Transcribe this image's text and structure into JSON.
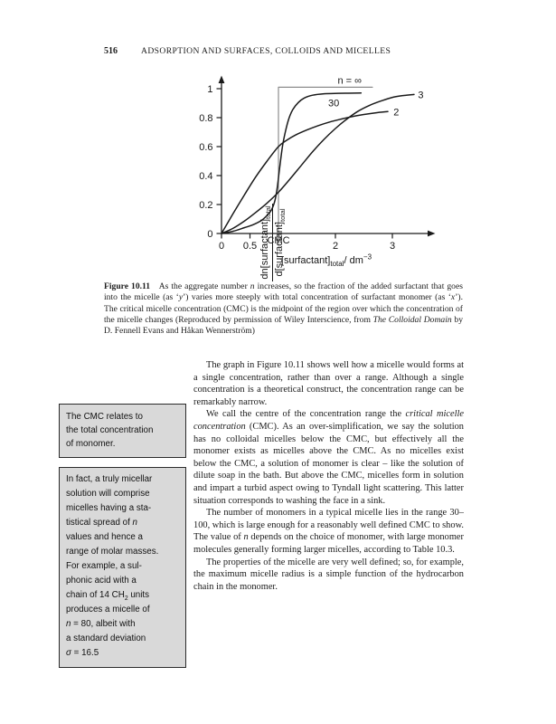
{
  "page_header": {
    "page_number": "516",
    "running_head": "ADSORPTION AND SURFACES, COLLOIDS AND MICELLES"
  },
  "chart_data": {
    "type": "line",
    "title": "",
    "xlabel": "[surfactant]total / dm−3",
    "ylabel": "dn[surfactant]total / d[surfactant]total",
    "xlabel_parts": [
      {
        "t": "[surfactant]"
      },
      {
        "t": "total",
        "sub": true
      },
      {
        "t": "/ dm"
      },
      {
        "t": "−3",
        "sup": true
      }
    ],
    "ylabel_fraction": {
      "numerator": [
        {
          "t": "dn[surfactant]"
        },
        {
          "t": "total",
          "sub": true
        }
      ],
      "denominator": [
        {
          "t": "d[surfactant]"
        },
        {
          "t": "total",
          "sub": true
        }
      ]
    },
    "xlim": [
      0,
      3.6
    ],
    "ylim": [
      0,
      1.12
    ],
    "grid": false,
    "x_ticks": [
      {
        "v": 0,
        "label": "0"
      },
      {
        "v": 0.5,
        "label": "0.5"
      },
      {
        "v": 1,
        "label": ""
      },
      {
        "v": 2,
        "label": "2"
      },
      {
        "v": 3,
        "label": "3"
      }
    ],
    "y_ticks": [
      {
        "v": 0,
        "label": "0"
      },
      {
        "v": 0.2,
        "label": "0.2"
      },
      {
        "v": 0.4,
        "label": "0.4"
      },
      {
        "v": 0.6,
        "label": "0.6"
      },
      {
        "v": 0.8,
        "label": "0.8"
      },
      {
        "v": 1,
        "label": "1"
      }
    ],
    "cmc_x": 1,
    "cmc_label": "CMC",
    "colors": {
      "axis": "#1a1a1a",
      "curve": "#1a1a1a",
      "step": "#8c8c8c"
    },
    "series": [
      {
        "id": "n-infinity",
        "name": "n = ∞",
        "smooth": false,
        "color": "step",
        "label": "n = ∞",
        "label_at": [
          2.25,
          1.055
        ],
        "label_anchor": "middle",
        "points": [
          [
            1,
            -0.08
          ],
          [
            1,
            1.01
          ],
          [
            2.65,
            1.01
          ]
        ]
      },
      {
        "id": "n-30",
        "name": "30",
        "smooth": true,
        "color": "curve",
        "label": "30",
        "label_at": [
          1.97,
          0.9
        ],
        "label_anchor": "middle",
        "points": [
          [
            0,
            0
          ],
          [
            0.2,
            0.015
          ],
          [
            0.4,
            0.04
          ],
          [
            0.55,
            0.06
          ],
          [
            0.7,
            0.09
          ],
          [
            0.8,
            0.125
          ],
          [
            0.88,
            0.165
          ],
          [
            0.94,
            0.23
          ],
          [
            0.98,
            0.32
          ],
          [
            1.02,
            0.45
          ],
          [
            1.07,
            0.6
          ],
          [
            1.12,
            0.7
          ],
          [
            1.18,
            0.79
          ],
          [
            1.25,
            0.855
          ],
          [
            1.35,
            0.905
          ],
          [
            1.45,
            0.935
          ],
          [
            1.6,
            0.955
          ],
          [
            1.8,
            0.965
          ],
          [
            2.05,
            0.968
          ],
          [
            2.45,
            0.97
          ]
        ]
      },
      {
        "id": "n-3",
        "name": "3",
        "smooth": true,
        "color": "curve",
        "label": "3",
        "label_at": [
          3.45,
          0.955
        ],
        "label_anchor": "start",
        "points": [
          [
            0,
            0
          ],
          [
            0.2,
            0.035
          ],
          [
            0.4,
            0.085
          ],
          [
            0.6,
            0.145
          ],
          [
            0.8,
            0.21
          ],
          [
            1.0,
            0.285
          ],
          [
            1.2,
            0.375
          ],
          [
            1.4,
            0.47
          ],
          [
            1.6,
            0.565
          ],
          [
            1.8,
            0.65
          ],
          [
            2.0,
            0.725
          ],
          [
            2.2,
            0.79
          ],
          [
            2.4,
            0.845
          ],
          [
            2.6,
            0.885
          ],
          [
            2.8,
            0.915
          ],
          [
            3.0,
            0.94
          ],
          [
            3.2,
            0.953
          ],
          [
            3.38,
            0.96
          ]
        ]
      },
      {
        "id": "n-2",
        "name": "2",
        "smooth": true,
        "color": "curve",
        "label": "2",
        "label_at": [
          3.02,
          0.838
        ],
        "label_anchor": "start",
        "points": [
          [
            0,
            0
          ],
          [
            0.2,
            0.135
          ],
          [
            0.4,
            0.265
          ],
          [
            0.6,
            0.39
          ],
          [
            0.8,
            0.5
          ],
          [
            1.0,
            0.6
          ],
          [
            1.15,
            0.645
          ],
          [
            1.3,
            0.68
          ],
          [
            1.5,
            0.715
          ],
          [
            1.7,
            0.745
          ],
          [
            1.9,
            0.77
          ],
          [
            2.1,
            0.79
          ],
          [
            2.3,
            0.808
          ],
          [
            2.5,
            0.822
          ],
          [
            2.7,
            0.833
          ],
          [
            2.92,
            0.842
          ]
        ]
      }
    ]
  },
  "figure_caption": {
    "segments": [
      {
        "t": "Figure 10.11",
        "bold": true
      },
      {
        "t": "  As the aggregate number "
      },
      {
        "t": "n",
        "italic": true
      },
      {
        "t": " increases, so the fraction of the added surfactant that goes into the micelle (as ‘"
      },
      {
        "t": "y",
        "italic": true
      },
      {
        "t": "’) varies more steeply with total concentration of surfactant monomer (as ‘"
      },
      {
        "t": "x",
        "italic": true
      },
      {
        "t": "’). The critical micelle concentration (CMC) is the midpoint of the region over which the concentration of the micelle changes (Reproduced by permission of Wiley Interscience, from "
      },
      {
        "t": "The Colloidal Domain",
        "italic": true
      },
      {
        "t": " by D. Fennell Evans and Håkan Wennerström)"
      }
    ]
  },
  "margin_notes": [
    {
      "lines": [
        [
          {
            "t": "The CMC relates to"
          }
        ],
        [
          {
            "t": "the total concentration"
          }
        ],
        [
          {
            "t": "of monomer."
          }
        ]
      ]
    },
    {
      "lines": [
        [
          {
            "t": "In fact, a truly micellar"
          }
        ],
        [
          {
            "t": "solution will comprise"
          }
        ],
        [
          {
            "t": "micelles having a sta-"
          }
        ],
        [
          {
            "t": "tistical spread of "
          },
          {
            "t": "n",
            "italic": true
          }
        ],
        [
          {
            "t": "values and hence a"
          }
        ],
        [
          {
            "t": "range of molar masses."
          }
        ],
        [
          {
            "t": "For example, a sul-"
          }
        ],
        [
          {
            "t": "phonic acid with a"
          }
        ],
        [
          {
            "t": "chain of 14 CH"
          },
          {
            "t": "2",
            "sub": true
          },
          {
            "t": " units"
          }
        ],
        [
          {
            "t": "produces a micelle of"
          }
        ],
        [
          {
            "t": "n",
            "italic": true
          },
          {
            "t": " = 80, albeit with"
          }
        ],
        [
          {
            "t": "a standard deviation"
          }
        ],
        [
          {
            "t": "σ",
            "italic": true
          },
          {
            "t": " = 16.5"
          }
        ]
      ]
    }
  ],
  "paragraphs": [
    {
      "segments": [
        {
          "t": "The graph in Figure 10.11 shows well how a micelle would forms at a single concentration, rather than over a range. Although a single concentration is a theoretical construct, the concentration range can be remarkably narrow."
        }
      ]
    },
    {
      "segments": [
        {
          "t": "We call the centre of the concentration range the "
        },
        {
          "t": "critical micelle concentration",
          "italic": true
        },
        {
          "t": " (CMC). As an over-simplification, we say the solution has no colloidal micelles below the CMC, but effectively all the monomer exists as micelles above the CMC. As no micelles exist below the CMC, a solution of monomer is clear – like the solution of dilute soap in the bath. But above the CMC, micelles form in solution and impart a turbid aspect owing to Tyndall light scattering. This latter situation corresponds to washing the face in a sink."
        }
      ]
    },
    {
      "segments": [
        {
          "t": "The number of monomers in a typical micelle lies in the range 30–100, which is large enough for a reasonably well defined CMC to show. The value of "
        },
        {
          "t": "n",
          "italic": true
        },
        {
          "t": " depends on the choice of monomer, with large monomer molecules generally forming larger micelles, according to Table 10.3."
        }
      ]
    },
    {
      "segments": [
        {
          "t": "The properties of the micelle are very well defined; so, for example, the maximum micelle radius is a simple function of the hydrocarbon chain in the monomer."
        }
      ]
    }
  ]
}
